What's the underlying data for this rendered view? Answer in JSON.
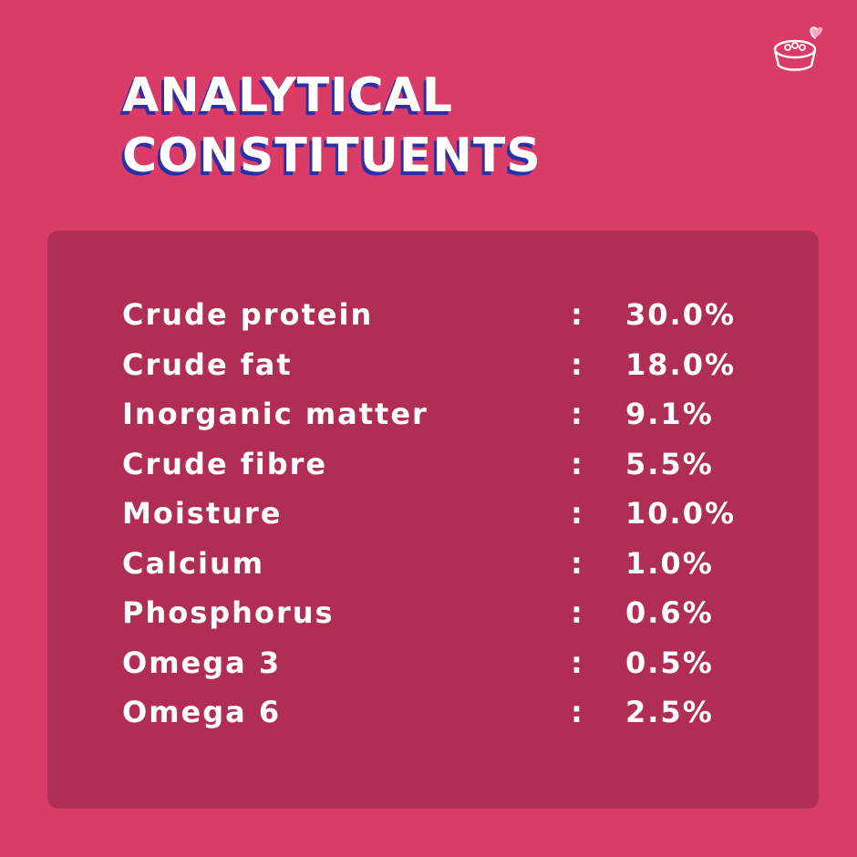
{
  "colors": {
    "background": "#d93d67",
    "panel": "#b02d54",
    "text": "#ffffff",
    "title_shadow": "#2c2fa8",
    "icon_stroke": "#ffffff",
    "icon_heart": "#f7a9c4"
  },
  "title": {
    "line1": "ANALYTICAL",
    "line2": "CONSTITUENTS"
  },
  "icon": "pet-food-bowl-heart-icon",
  "constituents": {
    "separator": ":",
    "rows": [
      {
        "label": "Crude protein",
        "value": "30.0%"
      },
      {
        "label": "Crude fat",
        "value": "18.0%"
      },
      {
        "label": "Inorganic matter",
        "value": "9.1%"
      },
      {
        "label": "Crude fibre",
        "value": "5.5%"
      },
      {
        "label": "Moisture",
        "value": "10.0%"
      },
      {
        "label": "Calcium",
        "value": "1.0%"
      },
      {
        "label": "Phosphorus",
        "value": "0.6%"
      },
      {
        "label": "Omega 3",
        "value": "0.5%"
      },
      {
        "label": "Omega 6",
        "value": "2.5%"
      }
    ]
  }
}
